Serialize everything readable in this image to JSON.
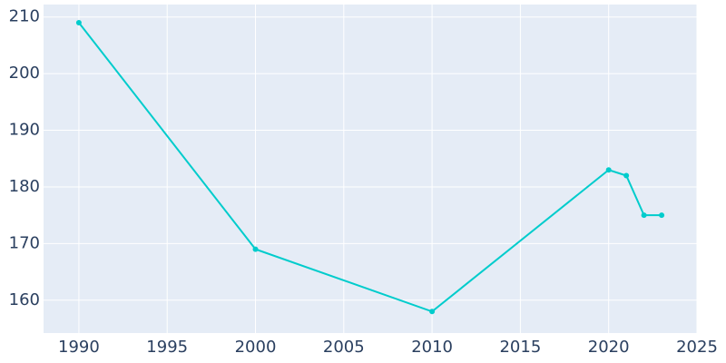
{
  "chart_data": {
    "type": "line",
    "x": [
      1990,
      2000,
      2010,
      2020,
      2021,
      2022,
      2023
    ],
    "series": [
      {
        "color": "#00cccc",
        "values": [
          209,
          169,
          158,
          183,
          182,
          175,
          175
        ]
      }
    ],
    "xlim": [
      1988,
      2025
    ],
    "xticks": [
      1990,
      1995,
      2000,
      2005,
      2010,
      2015,
      2020,
      2025
    ],
    "ylim": [
      154.2,
      212.2
    ],
    "yticks": [
      160,
      170,
      180,
      190,
      200,
      210
    ],
    "grid": true
  }
}
